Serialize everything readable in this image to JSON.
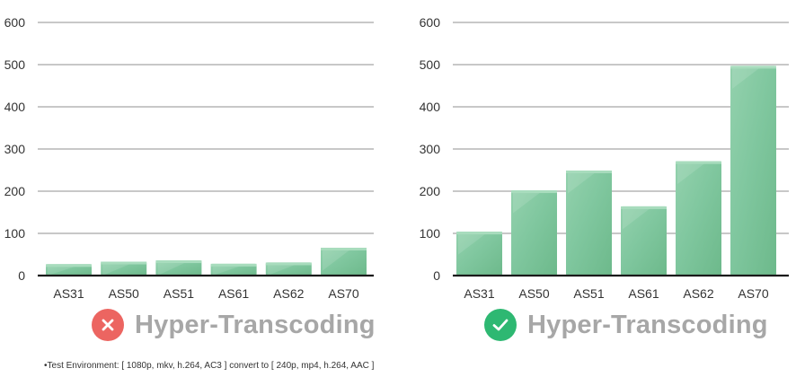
{
  "chart_data": [
    {
      "type": "bar",
      "categories": [
        "AS31",
        "AS50",
        "AS51",
        "AS61",
        "AS62",
        "AS70"
      ],
      "values": [
        27,
        33,
        36,
        28,
        31,
        66
      ],
      "ylim": [
        0,
        600
      ],
      "yticks": [
        "0",
        "100",
        "200",
        "300",
        "400",
        "500",
        "600"
      ],
      "grid": true,
      "color": "#7bc49a",
      "caption": "Hyper-Transcoding",
      "status": "disabled",
      "status_icon": "close-icon",
      "status_color": "#ec6561"
    },
    {
      "type": "bar",
      "categories": [
        "AS31",
        "AS50",
        "AS51",
        "AS61",
        "AS62",
        "AS70"
      ],
      "values": [
        104,
        202,
        249,
        164,
        271,
        497
      ],
      "ylim": [
        0,
        600
      ],
      "yticks": [
        "0",
        "100",
        "200",
        "300",
        "400",
        "500",
        "600"
      ],
      "grid": true,
      "color": "#7bc49a",
      "caption": "Hyper-Transcoding",
      "status": "enabled",
      "status_icon": "check-icon",
      "status_color": "#2eb872"
    }
  ],
  "footnote": "•Test Environment: [ 1080p, mkv, h.264, AC3 ] convert to [ 240p, mp4, h.264, AAC ]"
}
